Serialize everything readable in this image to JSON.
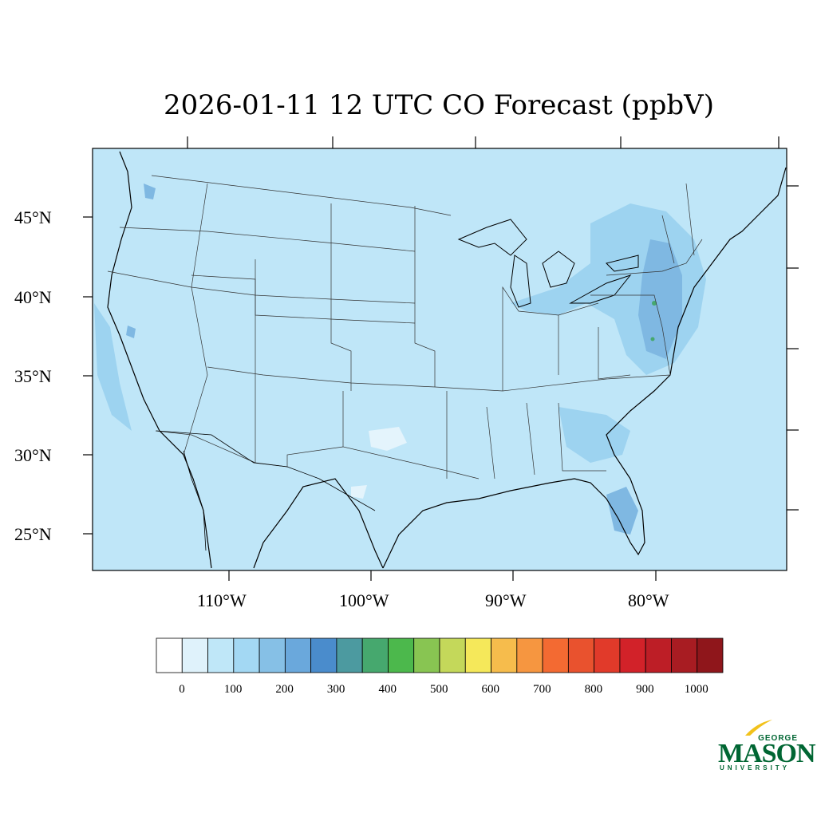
{
  "title": "2026-01-11 12 UTC CO Forecast (ppbV)",
  "lat_labels": [
    "45°N",
    "40°N",
    "35°N",
    "30°N",
    "25°N"
  ],
  "lon_labels": [
    "110°W",
    "100°W",
    "90°W",
    "80°W"
  ],
  "colorbar": {
    "labels": [
      "0",
      "100",
      "200",
      "300",
      "400",
      "500",
      "600",
      "700",
      "800",
      "900",
      "1000"
    ],
    "colors": [
      "#ffffff",
      "#dff2fb",
      "#bfe7f8",
      "#a3d8f3",
      "#86c0e6",
      "#6aa8dc",
      "#4a8ccc",
      "#4c9aa0",
      "#46a86e",
      "#4cb84c",
      "#88c552",
      "#c4d85a",
      "#f5e85a",
      "#f6bc4c",
      "#f69640",
      "#f36a32",
      "#e9522e",
      "#e13a2a",
      "#d22229",
      "#bd1e26",
      "#a81c22",
      "#8f161b"
    ]
  },
  "map": {
    "background_color": "#bfe6f8",
    "pollution_color": "#8ec7ec"
  },
  "logo": {
    "line1": "GEORGE",
    "line2": "MASON",
    "line3": "UNIVERSITY"
  }
}
